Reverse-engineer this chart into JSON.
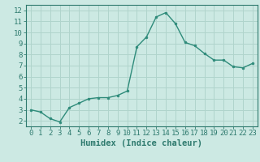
{
  "x": [
    0,
    1,
    2,
    3,
    4,
    5,
    6,
    7,
    8,
    9,
    10,
    11,
    12,
    13,
    14,
    15,
    16,
    17,
    18,
    19,
    20,
    21,
    22,
    23
  ],
  "y": [
    3.0,
    2.8,
    2.2,
    1.9,
    3.2,
    3.6,
    4.0,
    4.1,
    4.1,
    4.3,
    4.7,
    8.7,
    9.6,
    11.4,
    11.8,
    10.8,
    9.1,
    8.8,
    8.1,
    7.5,
    7.5,
    6.9,
    6.8,
    7.2
  ],
  "line_color": "#2e8b7a",
  "marker": "o",
  "marker_size": 2.0,
  "bg_color": "#cce9e3",
  "grid_color": "#b0d4cc",
  "xlabel": "Humidex (Indice chaleur)",
  "xlim": [
    -0.5,
    23.5
  ],
  "ylim": [
    1.5,
    12.5
  ],
  "yticks": [
    2,
    3,
    4,
    5,
    6,
    7,
    8,
    9,
    10,
    11,
    12
  ],
  "xticks": [
    0,
    1,
    2,
    3,
    4,
    5,
    6,
    7,
    8,
    9,
    10,
    11,
    12,
    13,
    14,
    15,
    16,
    17,
    18,
    19,
    20,
    21,
    22,
    23
  ],
  "tick_color": "#2e7a6e",
  "axis_color": "#2e7a6e",
  "label_color": "#2e7a6e",
  "xlabel_fontsize": 7.5,
  "tick_fontsize": 6.5,
  "linewidth": 1.0
}
